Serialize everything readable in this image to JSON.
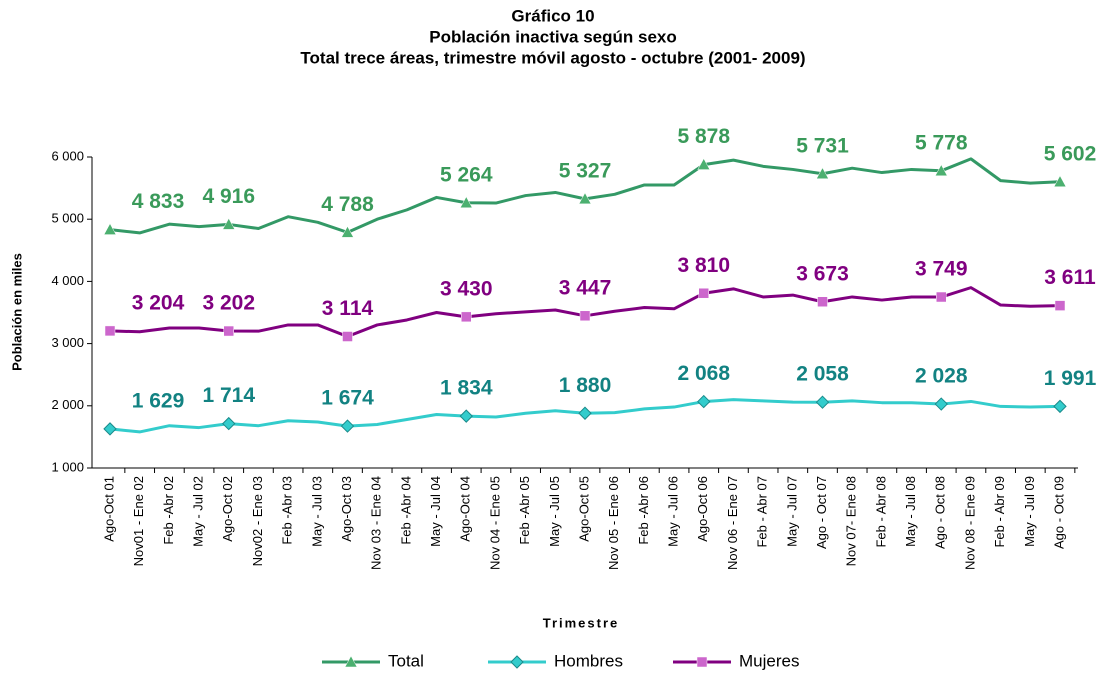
{
  "chart_data": {
    "type": "line",
    "title": "Gráfico 10",
    "subtitle": "Población inactiva según sexo",
    "subtitle2": "Total trece áreas, trimestre móvil agosto - octubre (2001- 2009)",
    "y_label": "Población en miles",
    "x_label": "Trimestre",
    "categories": [
      "Ago-Oct 01",
      "Nov01 - Ene 02",
      "Feb -Abr 02",
      "May - Jul 02",
      "Ago-Oct 02",
      "Nov02 - Ene 03",
      "Feb -Abr 03",
      "May - Jul 03",
      "Ago-Oct 03",
      "Nov 03 - Ene 04",
      "Feb -Abr 04",
      "May - Jul 04",
      "Ago-Oct 04",
      "Nov 04 - Ene 05",
      "Feb -Abr 05",
      "May - Jul 05",
      "Ago-Oct 05",
      "Nov 05 - Ene 06",
      "Feb -Abr 06",
      "May - Jul 06",
      "Ago-Oct 06",
      "Nov 06 - Ene 07",
      "Feb - Abr 07",
      "May - Jul 07",
      "Ago - Oct 07",
      "Nov 07- Ene 08",
      "Feb - Abr 08",
      "May - Jul 08",
      "Ago - Oct 08",
      "Nov 08 - Ene 09",
      "Feb - Abr 09",
      "May - Jul 09",
      "Ago - Oct 09"
    ],
    "ylim": [
      1000,
      6000
    ],
    "yticks": [
      {
        "value": 1000,
        "label": "1 000"
      },
      {
        "value": 2000,
        "label": "2 000"
      },
      {
        "value": 3000,
        "label": "3 000"
      },
      {
        "value": 4000,
        "label": "4 000"
      },
      {
        "value": 5000,
        "label": "5 000"
      },
      {
        "value": 6000,
        "label": "6 000"
      }
    ],
    "series": [
      {
        "name": "Total",
        "color": "#339966",
        "label_color": "#3a9a5a",
        "marker": "triangle",
        "values": [
          4833,
          4780,
          4920,
          4880,
          4916,
          4850,
          5040,
          4950,
          4788,
          5000,
          5150,
          5350,
          5264,
          5260,
          5380,
          5430,
          5327,
          5400,
          5550,
          5550,
          5878,
          5950,
          5850,
          5800,
          5731,
          5820,
          5750,
          5800,
          5778,
          5970,
          5620,
          5580,
          5602
        ],
        "value_labels": [
          "4 833",
          null,
          null,
          null,
          "4 916",
          null,
          null,
          null,
          "4 788",
          null,
          null,
          null,
          "5 264",
          null,
          null,
          null,
          "5 327",
          null,
          null,
          null,
          "5 878",
          null,
          null,
          null,
          "5 731",
          null,
          null,
          null,
          "5 778",
          null,
          null,
          null,
          "5 602"
        ]
      },
      {
        "name": "Hombres",
        "color": "#33cccc",
        "label_color": "#128282",
        "marker": "diamond",
        "values": [
          1629,
          1580,
          1680,
          1650,
          1714,
          1680,
          1760,
          1740,
          1674,
          1700,
          1780,
          1860,
          1834,
          1820,
          1880,
          1920,
          1880,
          1890,
          1950,
          1980,
          2068,
          2100,
          2080,
          2060,
          2058,
          2080,
          2050,
          2050,
          2028,
          2070,
          1990,
          1980,
          1991
        ],
        "value_labels": [
          "1 629",
          null,
          null,
          null,
          "1 714",
          null,
          null,
          null,
          "1 674",
          null,
          null,
          null,
          "1 834",
          null,
          null,
          null,
          "1 880",
          null,
          null,
          null,
          "2 068",
          null,
          null,
          null,
          "2 058",
          null,
          null,
          null,
          "2 028",
          null,
          null,
          null,
          "1 991"
        ]
      },
      {
        "name": "Mujeres",
        "color": "#800080",
        "label_color": "#800080",
        "marker": "square",
        "values": [
          3204,
          3190,
          3250,
          3250,
          3202,
          3200,
          3300,
          3300,
          3114,
          3300,
          3380,
          3500,
          3430,
          3480,
          3510,
          3540,
          3447,
          3520,
          3580,
          3560,
          3810,
          3880,
          3750,
          3780,
          3673,
          3750,
          3700,
          3750,
          3749,
          3900,
          3620,
          3600,
          3611
        ],
        "value_labels": [
          "3 204",
          null,
          null,
          null,
          "3 202",
          null,
          null,
          null,
          "3 114",
          null,
          null,
          null,
          "3 430",
          null,
          null,
          null,
          "3 447",
          null,
          null,
          null,
          "3 810",
          null,
          null,
          null,
          "3 673",
          null,
          null,
          null,
          "3 749",
          null,
          null,
          null,
          "3 611"
        ]
      }
    ]
  }
}
